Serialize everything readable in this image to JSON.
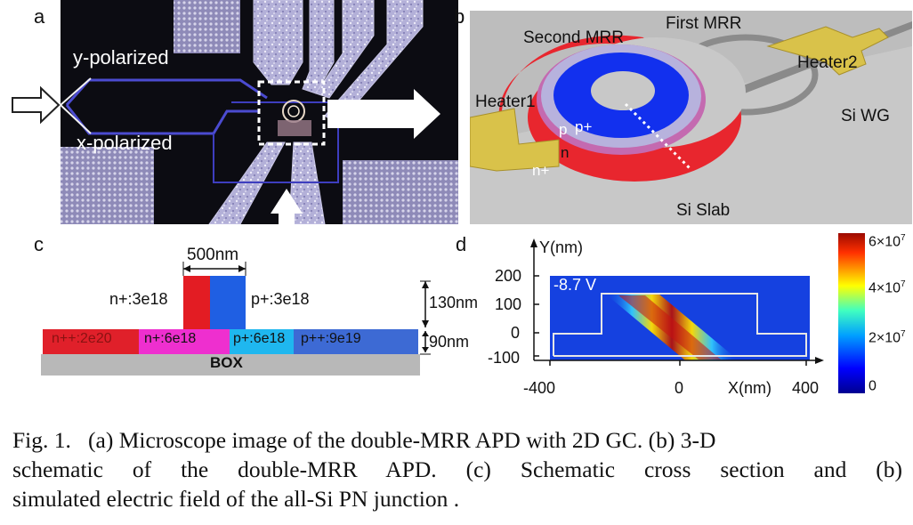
{
  "panels": {
    "a": {
      "label": "a",
      "y_polarized": "y-polarized",
      "x_polarized": "x-polarized"
    },
    "b": {
      "label": "b",
      "second_mrr": "Second MRR",
      "first_mrr": "First MRR",
      "heater1": "Heater1",
      "heater2": "Heater2",
      "si_wg": "Si WG",
      "si_slab": "Si Slab",
      "p": "p",
      "p_plus": "p+",
      "n": "n",
      "n_plus": "n+"
    },
    "c": {
      "label": "c",
      "width_label": "500nm",
      "rib_left": "n+:3e18",
      "rib_right": "p+:3e18",
      "height_rib": "130nm",
      "height_slab": "90nm",
      "slab_1": "n++:2e20",
      "slab_2": "n+:6e18",
      "slab_3": "p+:6e18",
      "slab_4": "p++:9e19",
      "box": "BOX",
      "colors": {
        "n_pp": "#e0202a",
        "n_p_slab": "#ee2fcf",
        "p_p_slab": "#1fb7ef",
        "p_pp": "#3d6ad4",
        "n_p_rib": "#e31c23",
        "p_p_rib": "#1f5fe3",
        "box": "#b8b8b8"
      }
    },
    "d": {
      "label": "d",
      "ylabel": "Y(nm)",
      "xlabel": "X(nm)",
      "bias": "-8.7 V",
      "y_ticks": [
        "200",
        "100",
        "0",
        "-100"
      ],
      "x_ticks": [
        "-400",
        "0",
        "400"
      ],
      "cb_ticks": [
        {
          "mant": "6×10",
          "exp": "7"
        },
        {
          "mant": "4×10",
          "exp": "7"
        },
        {
          "mant": "2×10",
          "exp": "7"
        },
        {
          "mant": "0",
          "exp": ""
        }
      ]
    }
  },
  "caption": {
    "line1": "Fig. 1.   (a) Microscope image of the double-MRR APD with 2D GC. (b) 3-D",
    "line2": "schematic of the double-MRR APD. (c) Schematic cross section and (b)",
    "line3": "simulated electric field of the all-Si PN junction ."
  }
}
